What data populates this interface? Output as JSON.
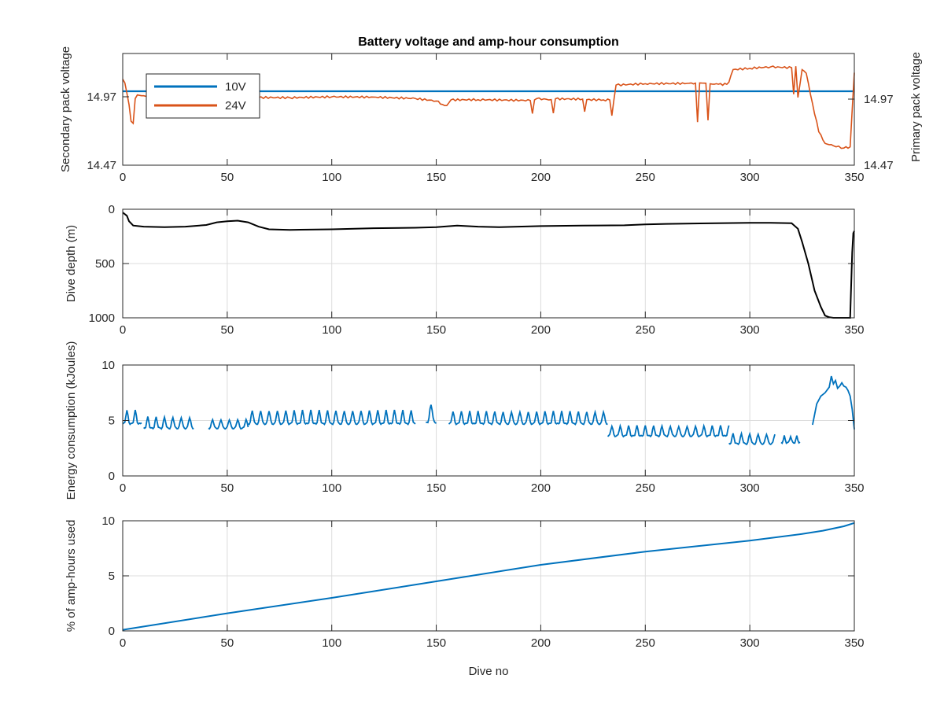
{
  "figure": {
    "title": "Battery voltage and amp-hour consumption",
    "xlabel": "Dive no"
  },
  "colors": {
    "blue": "#0072bd",
    "orange": "#d95319",
    "black": "#000000",
    "axis": "#262626",
    "grid": "#dcdcdc"
  },
  "chart_data": [
    {
      "type": "line",
      "title": "Battery voltage and amp-hour consumption",
      "xlim": [
        0,
        350
      ],
      "xticks": [
        0,
        50,
        100,
        150,
        200,
        250,
        300,
        350
      ],
      "grid": false,
      "legend": {
        "placement": "top-left",
        "entries": [
          {
            "name": "10V",
            "color": "#0072bd"
          },
          {
            "name": "24V",
            "color": "#d95319"
          }
        ]
      },
      "y_left": {
        "label": "Secondary pack voltage",
        "ylim": [
          14.47,
          14.97
        ],
        "ticks": [
          14.47,
          14.97
        ],
        "tick_labels": [
          "14.47",
          "14.97"
        ],
        "color": "#0072bd"
      },
      "y_right": {
        "label": "Primary pack voltage",
        "tick_labels": [
          "14.47",
          "14.97"
        ],
        "color": "#d95319",
        "scale": "relative 0-100"
      },
      "series": [
        {
          "name": "10V",
          "axis": "left",
          "color": "#0072bd",
          "x": [
            0,
            350
          ],
          "y": [
            14.97,
            14.97
          ]
        },
        {
          "name": "24V",
          "axis": "right",
          "color": "#d95319",
          "x": [
            0,
            1,
            2,
            3,
            4,
            5,
            6,
            7,
            10,
            20,
            40,
            60,
            65,
            80,
            100,
            120,
            140,
            150,
            153,
            155,
            157,
            170,
            195,
            196,
            197,
            198,
            205,
            206,
            207,
            220,
            221,
            222,
            230,
            233,
            234,
            235,
            236,
            250,
            270,
            274,
            275,
            276,
            277,
            279,
            280,
            281,
            282,
            285,
            289,
            290,
            292,
            300,
            310,
            320,
            321,
            322,
            323,
            325,
            327,
            330,
            333,
            336,
            340,
            345,
            348,
            349,
            350
          ],
          "y": [
            77,
            74,
            65,
            55,
            40,
            38,
            60,
            63,
            62,
            62,
            62,
            62,
            60,
            60,
            61,
            61,
            60,
            58,
            55,
            54,
            59,
            59,
            58,
            46,
            58,
            59,
            58,
            46,
            59,
            59,
            48,
            59,
            59,
            59,
            45,
            59,
            72,
            73,
            73,
            73,
            38,
            73,
            73,
            73,
            40,
            73,
            73,
            73,
            73,
            75,
            86,
            87,
            88,
            87,
            63,
            88,
            60,
            85,
            82,
            55,
            30,
            20,
            18,
            16,
            17,
            50,
            83
          ]
        }
      ]
    },
    {
      "type": "line",
      "xlim": [
        0,
        350
      ],
      "xticks": [
        0,
        50,
        100,
        150,
        200,
        250,
        300,
        350
      ],
      "ylabel": "Dive depth (m)",
      "ylim": [
        0,
        1000
      ],
      "yticks": [
        0,
        500,
        1000
      ],
      "y_reversed": true,
      "grid": true,
      "series": [
        {
          "color": "#000000",
          "x": [
            0,
            2,
            3,
            5,
            10,
            20,
            30,
            40,
            45,
            50,
            55,
            60,
            65,
            70,
            80,
            100,
            120,
            140,
            150,
            160,
            170,
            180,
            200,
            220,
            240,
            250,
            260,
            280,
            300,
            310,
            320,
            323,
            325,
            328,
            331,
            334,
            336,
            338,
            340,
            345,
            348,
            348.5,
            349,
            349.5,
            350
          ],
          "y": [
            30,
            60,
            110,
            150,
            160,
            165,
            160,
            145,
            120,
            110,
            105,
            120,
            160,
            185,
            190,
            185,
            175,
            170,
            165,
            150,
            160,
            165,
            155,
            150,
            148,
            140,
            135,
            130,
            125,
            125,
            128,
            180,
            300,
            500,
            750,
            900,
            980,
            995,
            1000,
            1000,
            1000,
            700,
            400,
            220,
            200
          ]
        }
      ]
    },
    {
      "type": "line",
      "xlim": [
        0,
        350
      ],
      "xticks": [
        0,
        50,
        100,
        150,
        200,
        250,
        300,
        350
      ],
      "ylabel": "Energy consumption (kJoules)",
      "ylim": [
        0,
        10
      ],
      "yticks": [
        0,
        5,
        10
      ],
      "grid": true,
      "series": [
        {
          "color": "#0072bd",
          "note": "oscillating series with gaps; periodic peaks",
          "segments": [
            {
              "x_start": 0,
              "x_end": 9,
              "base": 4.7,
              "peak": 5.9,
              "period": 4
            },
            {
              "x_start": 10,
              "x_end": 34,
              "base": 4.3,
              "peak": 5.3,
              "period": 4
            },
            {
              "x_start": 41,
              "x_end": 60,
              "base": 4.3,
              "peak": 5.1,
              "period": 4
            },
            {
              "x_start": 60,
              "x_end": 140,
              "base": 4.7,
              "peak": 5.9,
              "period": 4
            },
            {
              "x_start": 145,
              "x_end": 150,
              "base": 4.8,
              "peak": 6.4,
              "period": 5
            },
            {
              "x_start": 156,
              "x_end": 232,
              "base": 4.7,
              "peak": 5.8,
              "period": 4
            },
            {
              "x_start": 232,
              "x_end": 290,
              "base": 3.6,
              "peak": 4.5,
              "period": 4
            },
            {
              "x_start": 290,
              "x_end": 312,
              "base": 2.9,
              "peak": 3.8,
              "period": 4
            },
            {
              "x_start": 315,
              "x_end": 324,
              "base": 3.0,
              "peak": 3.6,
              "period": 3
            }
          ],
          "tail": {
            "x": [
              330,
              332,
              334,
              336,
              338,
              339,
              340,
              341,
              342,
              343,
              344,
              345,
              346,
              347,
              348,
              349,
              350
            ],
            "y": [
              4.6,
              6.5,
              7.2,
              7.5,
              8.0,
              9.0,
              8.3,
              8.6,
              7.9,
              8.1,
              8.4,
              8.1,
              8.0,
              7.7,
              7.2,
              6.0,
              4.2
            ]
          }
        }
      ]
    },
    {
      "type": "line",
      "xlim": [
        0,
        350
      ],
      "xticks": [
        0,
        50,
        100,
        150,
        200,
        250,
        300,
        350
      ],
      "xlabel": "Dive no",
      "ylabel": "% of amp-hours used",
      "ylim": [
        0,
        10
      ],
      "yticks": [
        0,
        5,
        10
      ],
      "grid": true,
      "series": [
        {
          "color": "#0072bd",
          "x": [
            0,
            50,
            100,
            150,
            200,
            250,
            300,
            325,
            335,
            345,
            350
          ],
          "y": [
            0.1,
            1.6,
            3.0,
            4.5,
            6.0,
            7.2,
            8.2,
            8.8,
            9.1,
            9.5,
            9.8
          ]
        }
      ]
    }
  ]
}
